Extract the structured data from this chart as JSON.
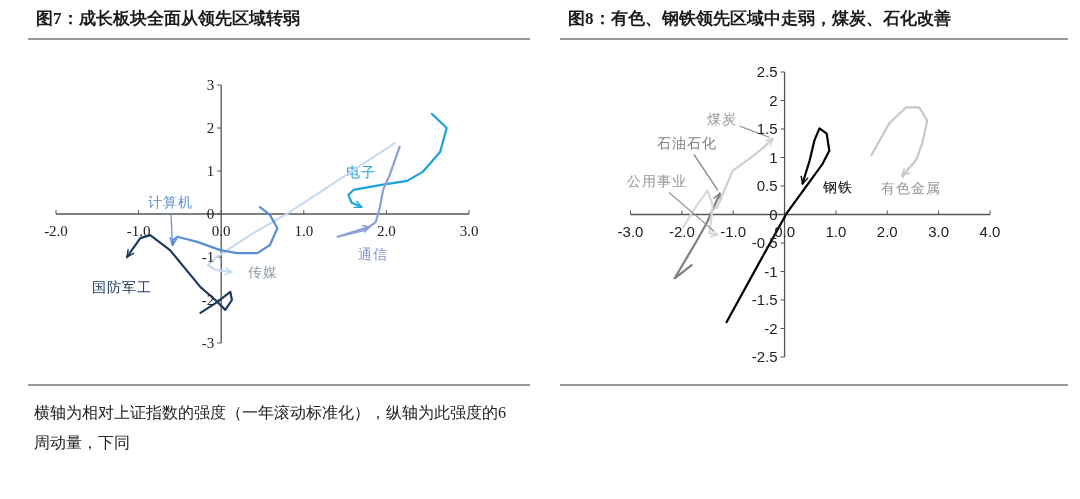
{
  "chart_data": [
    {
      "type": "line",
      "title": "图7：成长板块全面从领先区域转弱",
      "annotations": [
        "横轴为相对上证指数的强度（一年滚动标准化），纵轴为此强度的6周动量，下同"
      ],
      "xlim": [
        -2,
        3
      ],
      "ylim": [
        -3,
        3
      ],
      "xticks": [
        {
          "value": -2,
          "label": "-2.0"
        },
        {
          "value": -1,
          "label": "-1.0"
        },
        {
          "value": 0,
          "label": "0.0"
        },
        {
          "value": 1,
          "label": "1.0"
        },
        {
          "value": 2,
          "label": "2.0"
        },
        {
          "value": 3,
          "label": "3.0"
        }
      ],
      "yticks": [
        -3,
        -2,
        -1,
        0,
        1,
        2,
        3
      ],
      "series": [
        {
          "name": "电子",
          "color": "#1aa3dc",
          "x": [
            2.55,
            2.73,
            2.65,
            2.44,
            2.25,
            1.92,
            1.6,
            1.54,
            1.58,
            1.7
          ],
          "values": [
            2.33,
            2.0,
            1.44,
            0.98,
            0.77,
            0.67,
            0.56,
            0.44,
            0.26,
            0.16
          ]
        },
        {
          "name": "通信",
          "color": "#8c9fd6",
          "x": [
            2.16,
            2.04,
            1.96,
            1.92,
            1.87,
            1.74,
            1.41,
            1.62,
            1.8
          ],
          "values": [
            1.56,
            0.91,
            0.56,
            0.14,
            -0.19,
            -0.37,
            -0.53,
            -0.4,
            -0.3
          ]
        },
        {
          "name": "传媒",
          "color": "#c6dbf1",
          "x": [
            2.1,
            0.81,
            0.35,
            -0.07,
            -0.16,
            -0.07,
            0.13
          ],
          "values": [
            1.65,
            0.02,
            -0.49,
            -1.02,
            -1.19,
            -1.3,
            -1.35
          ]
        },
        {
          "name": "计算机",
          "color": "#5a8ed2",
          "x": [
            0.47,
            0.59,
            0.68,
            0.59,
            0.44,
            0.19,
            -0.01,
            -0.29,
            -0.53,
            -0.58,
            -0.59
          ],
          "values": [
            0.16,
            -0.02,
            -0.33,
            -0.72,
            -0.91,
            -0.91,
            -0.84,
            -0.65,
            -0.53,
            -0.6,
            -0.72
          ]
        },
        {
          "name": "国防军工",
          "color": "#1f3a60",
          "x": [
            -0.25,
            -0.05,
            0.11,
            0.13,
            0.05,
            -0.07,
            -0.25,
            -0.62,
            -0.86,
            -0.98,
            -1.14
          ],
          "values": [
            -2.3,
            -2.05,
            -1.81,
            -2.0,
            -2.23,
            -2.0,
            -1.7,
            -0.84,
            -0.49,
            -0.56,
            -1.0
          ]
        }
      ]
    },
    {
      "type": "line",
      "title": "图8：有色、钢铁领先区域中走弱，煤炭、石化改善",
      "xlim": [
        -3,
        4
      ],
      "ylim": [
        -2.5,
        2.5
      ],
      "xticks": [
        {
          "value": -3,
          "label": "-3.0"
        },
        {
          "value": -2,
          "label": "-2.0"
        },
        {
          "value": -1,
          "label": "-1.0"
        },
        {
          "value": 0,
          "label": "0.0"
        },
        {
          "value": 1,
          "label": "1.0"
        },
        {
          "value": 2,
          "label": "2.0"
        },
        {
          "value": 3,
          "label": "3.0"
        },
        {
          "value": 4,
          "label": "4.0"
        }
      ],
      "yticks": [
        -2.5,
        -2,
        -1.5,
        -1,
        -0.5,
        0,
        0.5,
        1,
        1.5,
        2,
        2.5
      ],
      "series": [
        {
          "name": "钢铁",
          "color": "#000000",
          "x": [
            -1.13,
            -0.49,
            0.04,
            0.74,
            0.87,
            0.82,
            0.68,
            0.58,
            0.49,
            0.35
          ],
          "values": [
            -1.89,
            -0.84,
            0.02,
            0.89,
            1.12,
            1.42,
            1.51,
            1.3,
            0.95,
            0.54
          ]
        },
        {
          "name": "有色金属",
          "color": "#c8c8c8",
          "x": [
            1.69,
            2.04,
            2.37,
            2.62,
            2.78,
            2.68,
            2.56,
            2.29
          ],
          "values": [
            1.04,
            1.6,
            1.88,
            1.88,
            1.65,
            1.25,
            0.95,
            0.68
          ]
        },
        {
          "name": "石油石化",
          "color": "#7f7f7f",
          "x": [
            -1.81,
            -2.14,
            -1.71,
            -1.51,
            -1.26
          ],
          "values": [
            -0.89,
            -1.12,
            -0.46,
            -0.14,
            0.37
          ]
        },
        {
          "name": "公用事业",
          "color": "#d9d9d9",
          "x": [
            -1.98,
            -1.71,
            -1.5,
            -1.4,
            -1.46,
            -1.3
          ],
          "values": [
            -0.23,
            0.16,
            0.42,
            0.16,
            -0.33,
            -0.35
          ]
        },
        {
          "name": "煤炭",
          "color": "#cfcfcf",
          "x": [
            -1.32,
            -1.01,
            -0.68,
            -0.43,
            -0.23
          ],
          "values": [
            0.11,
            0.77,
            0.98,
            1.16,
            1.33
          ]
        }
      ]
    }
  ]
}
